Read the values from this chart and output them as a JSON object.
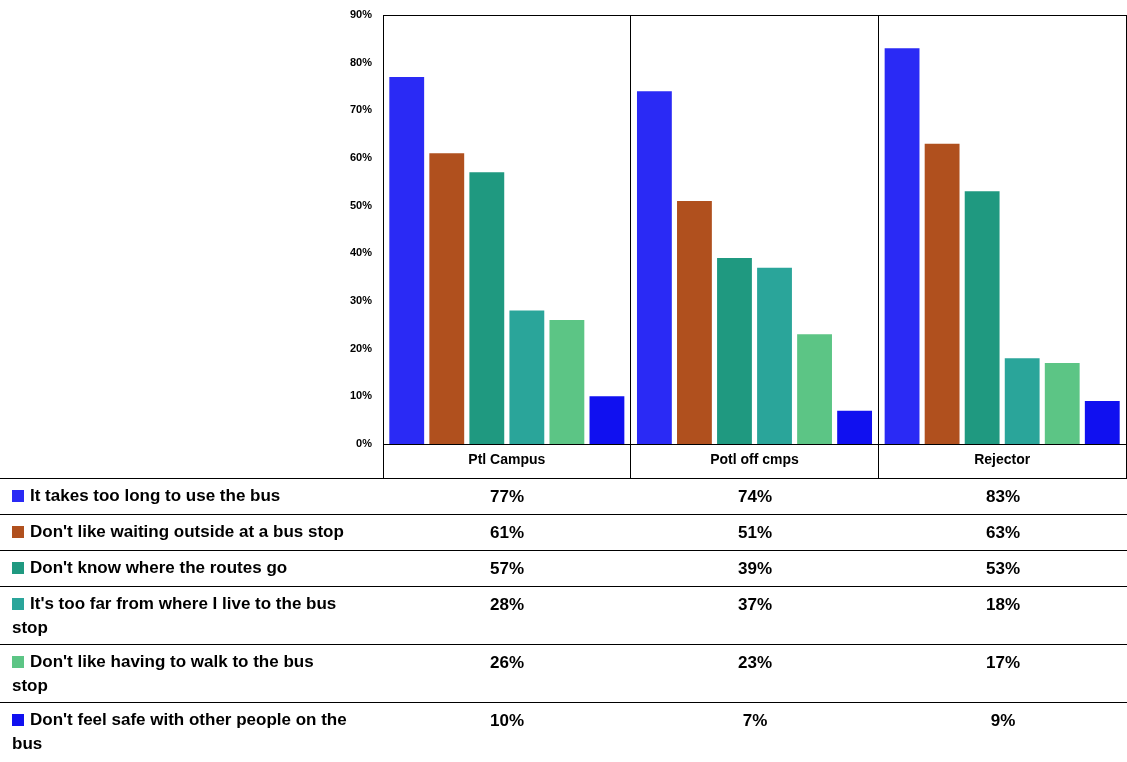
{
  "chart_data": {
    "type": "bar",
    "categories": [
      "Ptl Campus",
      "Potl off cmps",
      "Rejector"
    ],
    "ylim": [
      0,
      90
    ],
    "yticks": [
      {
        "value": 0,
        "label": "0%"
      },
      {
        "value": 10,
        "label": "10%"
      },
      {
        "value": 20,
        "label": "20%"
      },
      {
        "value": 30,
        "label": "30%"
      },
      {
        "value": 40,
        "label": "40%"
      },
      {
        "value": 50,
        "label": "50%"
      },
      {
        "value": 60,
        "label": "60%"
      },
      {
        "value": 70,
        "label": "70%"
      },
      {
        "value": 80,
        "label": "80%"
      },
      {
        "value": 90,
        "label": "90%"
      }
    ],
    "legend": "bottom",
    "series": [
      {
        "name": "It takes too long to use the bus",
        "color": "#2a2af5",
        "values": [
          77,
          74,
          83
        ],
        "value_labels": [
          "77%",
          "74%",
          "83%"
        ]
      },
      {
        "name": "Don't like waiting outside at a bus stop",
        "color": "#b0501e",
        "values": [
          61,
          51,
          63
        ],
        "value_labels": [
          "61%",
          "51%",
          "63%"
        ]
      },
      {
        "name": "Don't know where the routes go",
        "color": "#1f9980",
        "values": [
          57,
          39,
          53
        ],
        "value_labels": [
          "57%",
          "39%",
          "53%"
        ]
      },
      {
        "name": "It's too far from where I live to the bus stop",
        "color": "#2aa59a",
        "values": [
          28,
          37,
          18
        ],
        "value_labels": [
          "28%",
          "37%",
          "18%"
        ]
      },
      {
        "name": "Don't like having to walk to the bus stop",
        "color": "#5cc585",
        "values": [
          26,
          23,
          17
        ],
        "value_labels": [
          "26%",
          "23%",
          "17%"
        ]
      },
      {
        "name": "Don't feel safe with other people on the bus",
        "color": "#1010f0",
        "values": [
          10,
          7,
          9
        ],
        "value_labels": [
          "10%",
          "7%",
          "9%"
        ]
      }
    ]
  }
}
